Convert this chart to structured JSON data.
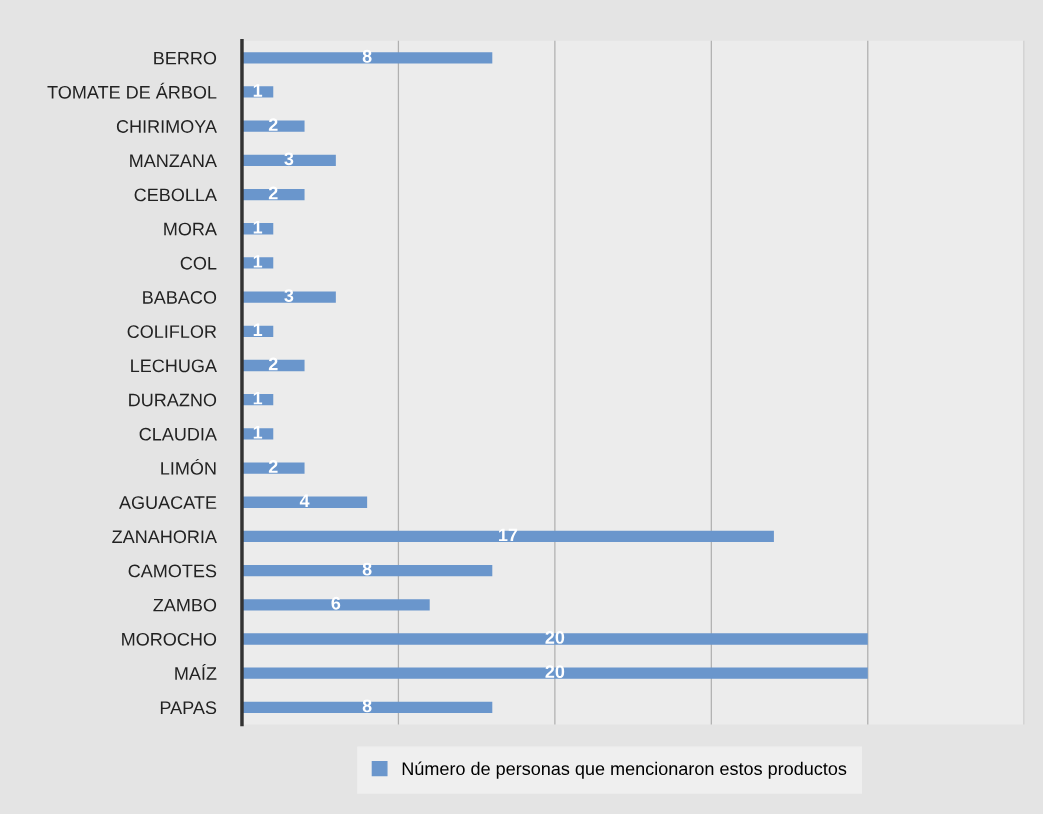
{
  "chart_data": {
    "type": "bar",
    "orientation": "horizontal",
    "categories": [
      "BERRO",
      "TOMATE DE ÁRBOL",
      "CHIRIMOYA",
      "MANZANA",
      "CEBOLLA",
      "MORA",
      "COL",
      "BABACO",
      "COLIFLOR",
      "LECHUGA",
      "DURAZNO",
      "CLAUDIA",
      "LIMÓN",
      "AGUACATE",
      "ZANAHORIA",
      "CAMOTES",
      "ZAMBO",
      "MOROCHO",
      "MAÍZ",
      "PAPAS"
    ],
    "series": [
      {
        "name": "Número de personas que mencionaron estos productos",
        "color": "#6a96cc",
        "values": [
          8,
          1,
          2,
          3,
          2,
          1,
          1,
          3,
          1,
          2,
          1,
          1,
          2,
          4,
          17,
          8,
          6,
          20,
          20,
          8
        ]
      }
    ],
    "xlim": [
      0,
      25
    ],
    "xticks": [
      {
        "value": 0,
        "label": null
      },
      {
        "value": 5,
        "label": null
      },
      {
        "value": 10,
        "label": null
      },
      {
        "value": 15,
        "label": null
      },
      {
        "value": 20,
        "label": null
      },
      {
        "value": 25,
        "label": null
      }
    ],
    "tick_labels": "y",
    "grid": "x",
    "data_labels": true,
    "legend": "bottom"
  }
}
